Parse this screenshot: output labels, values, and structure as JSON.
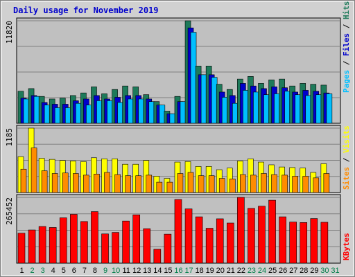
{
  "chart_data": {
    "type": "bar",
    "title": "Daily usage for November 2019",
    "categories": [
      "1",
      "2",
      "3",
      "4",
      "5",
      "6",
      "7",
      "8",
      "9",
      "10",
      "11",
      "12",
      "13",
      "14",
      "15",
      "16",
      "17",
      "18",
      "19",
      "20",
      "21",
      "22",
      "23",
      "24",
      "25",
      "26",
      "27",
      "28",
      "29",
      "30",
      "31"
    ],
    "weekend_days": [
      "2",
      "3",
      "9",
      "10",
      "16",
      "17",
      "23",
      "24",
      "30",
      "31"
    ],
    "colors": {
      "hits": "#1e7a5a",
      "files": "#0000cc",
      "pages": "#00bfff",
      "visits": "#ffff00",
      "sites": "#ff8c00",
      "kbytes": "#ff0000",
      "panel_bg": "#c0c0c0",
      "weekday_label": "#000000",
      "weekend_label": "#00804a"
    },
    "panels": [
      {
        "ytick": "11820",
        "ymax": 11820,
        "legend": [
          {
            "text": "Pages",
            "color": "#00bfff"
          },
          {
            "text": " / ",
            "color": "#000000"
          },
          {
            "text": "Files",
            "color": "#0000cc"
          },
          {
            "text": " / ",
            "color": "#000000"
          },
          {
            "text": "Hits",
            "color": "#1e7a5a"
          }
        ],
        "series": [
          {
            "name": "Hits",
            "color": "#1e7a5a",
            "values": [
              3700,
              4000,
              3100,
              2800,
              2900,
              3200,
              3500,
              4200,
              3400,
              3900,
              4300,
              4200,
              3300,
              2500,
              1400,
              3100,
              11820,
              6600,
              6600,
              4500,
              3900,
              5100,
              5400,
              4600,
              5000,
              5100,
              4300,
              4600,
              4500,
              4400,
              0
            ]
          },
          {
            "name": "Files",
            "color": "#0000cc",
            "values": [
              2900,
              3200,
              2400,
              2200,
              2200,
              2600,
              2800,
              3200,
              2800,
              3000,
              3200,
              3200,
              2800,
              2100,
              1100,
              2500,
              11000,
              5600,
              5600,
              3600,
              3200,
              4600,
              4300,
              4000,
              4200,
              4100,
              3600,
              3800,
              3700,
              3500,
              0
            ]
          },
          {
            "name": "Pages",
            "color": "#00bfff",
            "values": [
              2800,
              3100,
              2100,
              1800,
              1800,
              2300,
              2100,
              2600,
              2600,
              2400,
              2800,
              2800,
              2500,
              2100,
              1100,
              2500,
              10500,
              5600,
              5300,
              3000,
              2300,
              3800,
              3600,
              3300,
              3400,
              3700,
              3300,
              3200,
              3300,
              3400,
              0
            ]
          }
        ]
      },
      {
        "ytick": "1185",
        "ymax": 1185,
        "legend": [
          {
            "text": "Sites",
            "color": "#ff8c00"
          },
          {
            "text": " / ",
            "color": "#000000"
          },
          {
            "text": "Visits",
            "color": "#ffff00"
          }
        ],
        "series": [
          {
            "name": "Visits",
            "color": "#ffff00",
            "values": [
              660,
              1185,
              630,
              610,
              590,
              580,
              570,
              640,
              620,
              620,
              520,
              520,
              590,
              300,
              260,
              560,
              570,
              480,
              480,
              420,
              450,
              580,
              620,
              560,
              510,
              470,
              460,
              450,
              370,
              530,
              0
            ]
          },
          {
            "name": "Sites",
            "color": "#ff8c00",
            "values": [
              430,
              820,
              400,
              350,
              360,
              350,
              320,
              340,
              370,
              330,
              310,
              310,
              320,
              190,
              190,
              350,
              370,
              310,
              310,
              260,
              250,
              330,
              320,
              350,
              330,
              320,
              300,
              300,
              270,
              350,
              0
            ]
          }
        ]
      },
      {
        "ytick": "265452",
        "ymax": 265452,
        "legend": [
          {
            "text": "KBytes",
            "color": "#ff0000"
          }
        ],
        "series": [
          {
            "name": "KBytes",
            "color": "#ff0000",
            "values": [
              121000,
              134000,
              148000,
              144000,
              183000,
              197000,
              168000,
              208000,
              118000,
              124000,
              170000,
              195000,
              139000,
              56000,
              117000,
              257000,
              219000,
              187000,
              141000,
              179000,
              162000,
              265452,
              221000,
              230000,
              254000,
              187000,
              166000,
              164000,
              180000,
              165000,
              0
            ]
          }
        ]
      }
    ]
  }
}
